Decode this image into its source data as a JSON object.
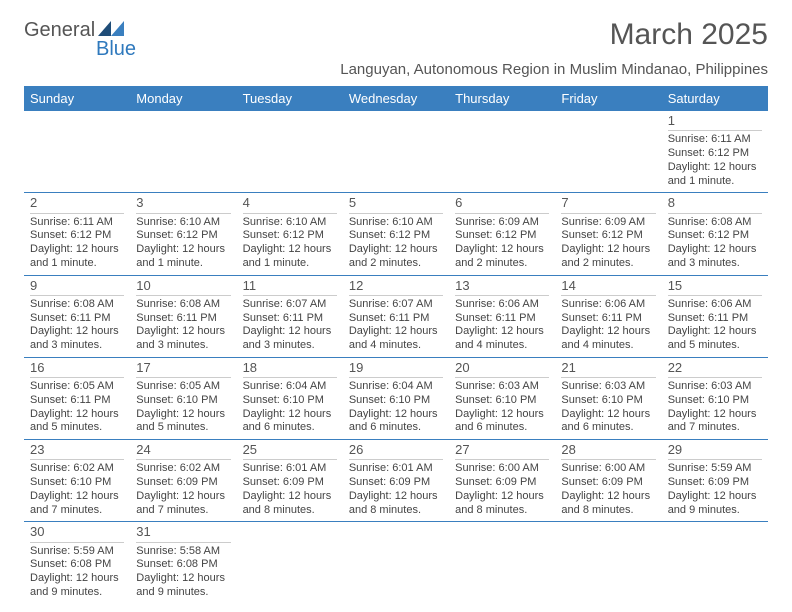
{
  "logo": {
    "textA": "General",
    "textB": "Blue",
    "colorA": "#555555",
    "colorB": "#2f79bd"
  },
  "title": "March 2025",
  "subtitle": "Languyan, Autonomous Region in Muslim Mindanao, Philippines",
  "header_bg": "#3a7fbf",
  "day_names": [
    "Sunday",
    "Monday",
    "Tuesday",
    "Wednesday",
    "Thursday",
    "Friday",
    "Saturday"
  ],
  "weeks": [
    [
      {
        "blank": true
      },
      {
        "blank": true
      },
      {
        "blank": true
      },
      {
        "blank": true
      },
      {
        "blank": true
      },
      {
        "blank": true
      },
      {
        "n": "1",
        "sr": "Sunrise: 6:11 AM",
        "ss": "Sunset: 6:12 PM",
        "dl": "Daylight: 12 hours and 1 minute."
      }
    ],
    [
      {
        "n": "2",
        "sr": "Sunrise: 6:11 AM",
        "ss": "Sunset: 6:12 PM",
        "dl": "Daylight: 12 hours and 1 minute."
      },
      {
        "n": "3",
        "sr": "Sunrise: 6:10 AM",
        "ss": "Sunset: 6:12 PM",
        "dl": "Daylight: 12 hours and 1 minute."
      },
      {
        "n": "4",
        "sr": "Sunrise: 6:10 AM",
        "ss": "Sunset: 6:12 PM",
        "dl": "Daylight: 12 hours and 1 minute."
      },
      {
        "n": "5",
        "sr": "Sunrise: 6:10 AM",
        "ss": "Sunset: 6:12 PM",
        "dl": "Daylight: 12 hours and 2 minutes."
      },
      {
        "n": "6",
        "sr": "Sunrise: 6:09 AM",
        "ss": "Sunset: 6:12 PM",
        "dl": "Daylight: 12 hours and 2 minutes."
      },
      {
        "n": "7",
        "sr": "Sunrise: 6:09 AM",
        "ss": "Sunset: 6:12 PM",
        "dl": "Daylight: 12 hours and 2 minutes."
      },
      {
        "n": "8",
        "sr": "Sunrise: 6:08 AM",
        "ss": "Sunset: 6:12 PM",
        "dl": "Daylight: 12 hours and 3 minutes."
      }
    ],
    [
      {
        "n": "9",
        "sr": "Sunrise: 6:08 AM",
        "ss": "Sunset: 6:11 PM",
        "dl": "Daylight: 12 hours and 3 minutes."
      },
      {
        "n": "10",
        "sr": "Sunrise: 6:08 AM",
        "ss": "Sunset: 6:11 PM",
        "dl": "Daylight: 12 hours and 3 minutes."
      },
      {
        "n": "11",
        "sr": "Sunrise: 6:07 AM",
        "ss": "Sunset: 6:11 PM",
        "dl": "Daylight: 12 hours and 3 minutes."
      },
      {
        "n": "12",
        "sr": "Sunrise: 6:07 AM",
        "ss": "Sunset: 6:11 PM",
        "dl": "Daylight: 12 hours and 4 minutes."
      },
      {
        "n": "13",
        "sr": "Sunrise: 6:06 AM",
        "ss": "Sunset: 6:11 PM",
        "dl": "Daylight: 12 hours and 4 minutes."
      },
      {
        "n": "14",
        "sr": "Sunrise: 6:06 AM",
        "ss": "Sunset: 6:11 PM",
        "dl": "Daylight: 12 hours and 4 minutes."
      },
      {
        "n": "15",
        "sr": "Sunrise: 6:06 AM",
        "ss": "Sunset: 6:11 PM",
        "dl": "Daylight: 12 hours and 5 minutes."
      }
    ],
    [
      {
        "n": "16",
        "sr": "Sunrise: 6:05 AM",
        "ss": "Sunset: 6:11 PM",
        "dl": "Daylight: 12 hours and 5 minutes."
      },
      {
        "n": "17",
        "sr": "Sunrise: 6:05 AM",
        "ss": "Sunset: 6:10 PM",
        "dl": "Daylight: 12 hours and 5 minutes."
      },
      {
        "n": "18",
        "sr": "Sunrise: 6:04 AM",
        "ss": "Sunset: 6:10 PM",
        "dl": "Daylight: 12 hours and 6 minutes."
      },
      {
        "n": "19",
        "sr": "Sunrise: 6:04 AM",
        "ss": "Sunset: 6:10 PM",
        "dl": "Daylight: 12 hours and 6 minutes."
      },
      {
        "n": "20",
        "sr": "Sunrise: 6:03 AM",
        "ss": "Sunset: 6:10 PM",
        "dl": "Daylight: 12 hours and 6 minutes."
      },
      {
        "n": "21",
        "sr": "Sunrise: 6:03 AM",
        "ss": "Sunset: 6:10 PM",
        "dl": "Daylight: 12 hours and 6 minutes."
      },
      {
        "n": "22",
        "sr": "Sunrise: 6:03 AM",
        "ss": "Sunset: 6:10 PM",
        "dl": "Daylight: 12 hours and 7 minutes."
      }
    ],
    [
      {
        "n": "23",
        "sr": "Sunrise: 6:02 AM",
        "ss": "Sunset: 6:10 PM",
        "dl": "Daylight: 12 hours and 7 minutes."
      },
      {
        "n": "24",
        "sr": "Sunrise: 6:02 AM",
        "ss": "Sunset: 6:09 PM",
        "dl": "Daylight: 12 hours and 7 minutes."
      },
      {
        "n": "25",
        "sr": "Sunrise: 6:01 AM",
        "ss": "Sunset: 6:09 PM",
        "dl": "Daylight: 12 hours and 8 minutes."
      },
      {
        "n": "26",
        "sr": "Sunrise: 6:01 AM",
        "ss": "Sunset: 6:09 PM",
        "dl": "Daylight: 12 hours and 8 minutes."
      },
      {
        "n": "27",
        "sr": "Sunrise: 6:00 AM",
        "ss": "Sunset: 6:09 PM",
        "dl": "Daylight: 12 hours and 8 minutes."
      },
      {
        "n": "28",
        "sr": "Sunrise: 6:00 AM",
        "ss": "Sunset: 6:09 PM",
        "dl": "Daylight: 12 hours and 8 minutes."
      },
      {
        "n": "29",
        "sr": "Sunrise: 5:59 AM",
        "ss": "Sunset: 6:09 PM",
        "dl": "Daylight: 12 hours and 9 minutes."
      }
    ],
    [
      {
        "n": "30",
        "sr": "Sunrise: 5:59 AM",
        "ss": "Sunset: 6:08 PM",
        "dl": "Daylight: 12 hours and 9 minutes."
      },
      {
        "n": "31",
        "sr": "Sunrise: 5:58 AM",
        "ss": "Sunset: 6:08 PM",
        "dl": "Daylight: 12 hours and 9 minutes."
      },
      {
        "blank": true
      },
      {
        "blank": true
      },
      {
        "blank": true
      },
      {
        "blank": true
      },
      {
        "blank": true
      }
    ]
  ]
}
